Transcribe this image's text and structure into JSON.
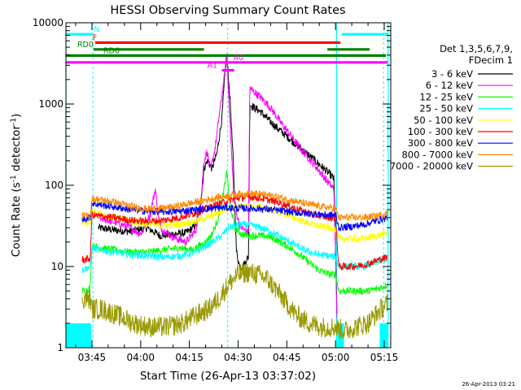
{
  "chart_data": {
    "type": "line",
    "title": "HESSI Observing Summary Count Rates",
    "xlabel": "Start Time (26-Apr-13 03:37:02)",
    "ylabel_main": "Count Rate (s",
    "ylabel_sup": "-1",
    "ylabel_mid": " detector",
    "ylabel_end": ")",
    "yscale": "log",
    "xlim": [
      "03:37",
      "05:17"
    ],
    "ylim": [
      1,
      10000
    ],
    "xticks": [
      {
        "t": "03:45",
        "m": 225
      },
      {
        "t": "04:00",
        "m": 240
      },
      {
        "t": "04:15",
        "m": 255
      },
      {
        "t": "04:30",
        "m": 270
      },
      {
        "t": "04:45",
        "m": 285
      },
      {
        "t": "05:00",
        "m": 300
      },
      {
        "t": "05:15",
        "m": 315
      }
    ],
    "yticks": [
      {
        "t": "1",
        "v": 1
      },
      {
        "t": "10",
        "v": 10
      },
      {
        "t": "100",
        "v": 100
      },
      {
        "t": "1000",
        "v": 1000
      },
      {
        "t": "10000",
        "v": 10000
      }
    ],
    "legend": {
      "title1": "Det 1,3,5,6,7,9,",
      "title2": "FDecim 1",
      "position": "right"
    },
    "series": [
      {
        "name": "3 - 6 keV",
        "color": "#000000",
        "points": [
          [
            227,
            30
          ],
          [
            232,
            28
          ],
          [
            237,
            27
          ],
          [
            242,
            30
          ],
          [
            246,
            24
          ],
          [
            250,
            25
          ],
          [
            254,
            26
          ],
          [
            257,
            32
          ],
          [
            258.5,
            60
          ],
          [
            259.5,
            160
          ],
          [
            260.5,
            200
          ],
          [
            262,
            160
          ],
          [
            263.5,
            250
          ],
          [
            265,
            650
          ],
          [
            266,
            2500
          ],
          [
            266.5,
            4000
          ],
          [
            267.5,
            1200
          ],
          [
            268.5,
            200
          ],
          [
            269.5,
            15
          ],
          [
            270.5,
            10
          ],
          [
            271.5,
            10
          ],
          [
            272.5,
            12
          ],
          [
            273.2,
            13
          ],
          [
            273.6,
            1000
          ],
          [
            275,
            900
          ],
          [
            277,
            800
          ],
          [
            280,
            600
          ],
          [
            283,
            470
          ],
          [
            286,
            370
          ],
          [
            289,
            290
          ],
          [
            292,
            230
          ],
          [
            295,
            180
          ],
          [
            298,
            140
          ],
          [
            299.5,
            120
          ],
          [
            300.5,
            2
          ]
        ]
      },
      {
        "name": "6 - 12 keV",
        "color": "#ff00ff",
        "points": [
          [
            227,
            40
          ],
          [
            232,
            35
          ],
          [
            237,
            30
          ],
          [
            240,
            25
          ],
          [
            243,
            45
          ],
          [
            244.5,
            90
          ],
          [
            246,
            30
          ],
          [
            250,
            23
          ],
          [
            254,
            20
          ],
          [
            257,
            28
          ],
          [
            258.5,
            60
          ],
          [
            259.5,
            200
          ],
          [
            260.5,
            260
          ],
          [
            261.5,
            150
          ],
          [
            263,
            300
          ],
          [
            264.5,
            900
          ],
          [
            266,
            2500
          ],
          [
            266.5,
            4200
          ],
          [
            267.5,
            600
          ],
          [
            268.5,
            100
          ],
          [
            269.5,
            45
          ],
          [
            270.5,
            32
          ],
          [
            272,
            28
          ],
          [
            273.2,
            26
          ],
          [
            273.6,
            1600
          ],
          [
            275,
            1400
          ],
          [
            277,
            1200
          ],
          [
            280,
            900
          ],
          [
            283,
            600
          ],
          [
            286,
            420
          ],
          [
            289,
            290
          ],
          [
            292,
            210
          ],
          [
            295,
            150
          ],
          [
            298,
            105
          ],
          [
            299.5,
            90
          ],
          [
            300.5,
            2
          ]
        ]
      },
      {
        "name": "12 - 25 keV",
        "color": "#00ff00",
        "points": [
          [
            222,
            5
          ],
          [
            223,
            5
          ],
          [
            224.5,
            5.5
          ],
          [
            225,
            18
          ],
          [
            227,
            17
          ],
          [
            232,
            16
          ],
          [
            237,
            15
          ],
          [
            242,
            15
          ],
          [
            247,
            16
          ],
          [
            252,
            17
          ],
          [
            256,
            16
          ],
          [
            258,
            18
          ],
          [
            260,
            20
          ],
          [
            262,
            25
          ],
          [
            264,
            40
          ],
          [
            265.5,
            80
          ],
          [
            266.5,
            150
          ],
          [
            267.5,
            60
          ],
          [
            269,
            30
          ],
          [
            271,
            25
          ],
          [
            274,
            24
          ],
          [
            277,
            24
          ],
          [
            280,
            23
          ],
          [
            283,
            20
          ],
          [
            286,
            17
          ],
          [
            289,
            14
          ],
          [
            292,
            11
          ],
          [
            295,
            9
          ],
          [
            298,
            8
          ],
          [
            300,
            8
          ],
          [
            301,
            5
          ],
          [
            304,
            5
          ],
          [
            306,
            5
          ],
          [
            310,
            5
          ],
          [
            314,
            5.5
          ],
          [
            316,
            6
          ]
        ]
      },
      {
        "name": "25 - 50 keV",
        "color": "#00ffff",
        "points": [
          [
            222,
            9
          ],
          [
            224.5,
            10
          ],
          [
            225,
            17
          ],
          [
            227,
            16
          ],
          [
            232,
            15
          ],
          [
            237,
            14
          ],
          [
            242,
            13.5
          ],
          [
            247,
            13
          ],
          [
            252,
            13.5
          ],
          [
            257,
            15
          ],
          [
            262,
            20
          ],
          [
            265,
            24
          ],
          [
            267,
            30
          ],
          [
            269,
            32
          ],
          [
            271,
            33
          ],
          [
            274,
            32
          ],
          [
            277,
            30
          ],
          [
            280,
            27
          ],
          [
            283,
            23
          ],
          [
            286,
            20
          ],
          [
            289,
            17
          ],
          [
            292,
            15
          ],
          [
            295,
            14
          ],
          [
            298,
            13.5
          ],
          [
            300,
            13
          ],
          [
            301,
            10
          ],
          [
            304,
            10
          ],
          [
            308,
            10
          ],
          [
            312,
            11
          ],
          [
            316,
            12.5
          ]
        ]
      },
      {
        "name": "50 - 100 keV",
        "color": "#ffff00",
        "points": [
          [
            222,
            34
          ],
          [
            224.5,
            34
          ],
          [
            225,
            48
          ],
          [
            227,
            45
          ],
          [
            232,
            40
          ],
          [
            237,
            36
          ],
          [
            242,
            33
          ],
          [
            247,
            32
          ],
          [
            252,
            33
          ],
          [
            257,
            36
          ],
          [
            262,
            42
          ],
          [
            266,
            50
          ],
          [
            270,
            55
          ],
          [
            274,
            55
          ],
          [
            278,
            53
          ],
          [
            282,
            48
          ],
          [
            286,
            42
          ],
          [
            290,
            36
          ],
          [
            294,
            32
          ],
          [
            298,
            30
          ],
          [
            300,
            29
          ],
          [
            301,
            22
          ],
          [
            305,
            22
          ],
          [
            309,
            22
          ],
          [
            313,
            24
          ],
          [
            316,
            26
          ]
        ]
      },
      {
        "name": "100 - 300 keV",
        "color": "#ff0000",
        "points": [
          [
            222,
            12
          ],
          [
            224.5,
            12.5
          ],
          [
            225,
            43
          ],
          [
            227,
            42
          ],
          [
            232,
            40
          ],
          [
            237,
            37
          ],
          [
            242,
            36
          ],
          [
            247,
            37
          ],
          [
            252,
            40
          ],
          [
            257,
            46
          ],
          [
            262,
            55
          ],
          [
            266,
            63
          ],
          [
            270,
            70
          ],
          [
            274,
            72
          ],
          [
            278,
            68
          ],
          [
            282,
            62
          ],
          [
            286,
            55
          ],
          [
            290,
            48
          ],
          [
            294,
            43
          ],
          [
            298,
            40
          ],
          [
            300,
            39
          ],
          [
            301,
            10
          ],
          [
            305,
            10
          ],
          [
            309,
            10.5
          ],
          [
            313,
            12
          ],
          [
            316,
            13
          ]
        ]
      },
      {
        "name": "300 - 800 keV",
        "color": "#0000ff",
        "points": [
          [
            222,
            38
          ],
          [
            224.5,
            40
          ],
          [
            225,
            60
          ],
          [
            227,
            58
          ],
          [
            232,
            54
          ],
          [
            237,
            50
          ],
          [
            242,
            48
          ],
          [
            247,
            47
          ],
          [
            252,
            48
          ],
          [
            257,
            50
          ],
          [
            262,
            52
          ],
          [
            266,
            53
          ],
          [
            270,
            52
          ],
          [
            274,
            52
          ],
          [
            278,
            51
          ],
          [
            282,
            49
          ],
          [
            286,
            47
          ],
          [
            290,
            45
          ],
          [
            294,
            44
          ],
          [
            298,
            43
          ],
          [
            300,
            43
          ],
          [
            301,
            30
          ],
          [
            305,
            31
          ],
          [
            309,
            33
          ],
          [
            313,
            37
          ],
          [
            316,
            40
          ]
        ]
      },
      {
        "name": "800 - 7000 keV",
        "color": "#ff8800",
        "points": [
          [
            222,
            42
          ],
          [
            224.5,
            42
          ],
          [
            225,
            68
          ],
          [
            227,
            67
          ],
          [
            232,
            62
          ],
          [
            237,
            55
          ],
          [
            242,
            51
          ],
          [
            247,
            52
          ],
          [
            252,
            56
          ],
          [
            257,
            62
          ],
          [
            262,
            68
          ],
          [
            266,
            74
          ],
          [
            270,
            78
          ],
          [
            274,
            79
          ],
          [
            278,
            77
          ],
          [
            282,
            72
          ],
          [
            286,
            66
          ],
          [
            290,
            60
          ],
          [
            294,
            56
          ],
          [
            298,
            53
          ],
          [
            300,
            52
          ],
          [
            301,
            40
          ],
          [
            305,
            40
          ],
          [
            309,
            40
          ],
          [
            313,
            42
          ],
          [
            316,
            45
          ]
        ]
      },
      {
        "name": "7000 - 20000 keV",
        "color": "#999900",
        "points": [
          [
            222,
            4
          ],
          [
            224.5,
            4
          ],
          [
            225,
            3
          ],
          [
            228,
            3
          ],
          [
            233,
            2.5
          ],
          [
            238,
            2
          ],
          [
            243,
            1.8
          ],
          [
            248,
            1.8
          ],
          [
            253,
            2
          ],
          [
            257,
            2.5
          ],
          [
            261,
            3
          ],
          [
            264,
            4
          ],
          [
            267,
            6
          ],
          [
            270,
            8
          ],
          [
            273,
            8.5
          ],
          [
            276,
            8
          ],
          [
            279,
            7
          ],
          [
            282,
            5
          ],
          [
            285,
            3.5
          ],
          [
            288,
            2.5
          ],
          [
            292,
            2
          ],
          [
            296,
            1.8
          ],
          [
            300,
            1.8
          ],
          [
            303,
            1.6
          ],
          [
            306,
            1.8
          ],
          [
            310,
            2
          ],
          [
            314,
            3
          ],
          [
            316,
            3.5
          ]
        ]
      }
    ],
    "flag_bars": [
      {
        "label": "N",
        "color": "#00ffff",
        "level": 7200,
        "label_at": 225.6,
        "segments": [
          [
            217,
            225.3
          ],
          [
            302,
            316
          ]
        ]
      },
      {
        "label": "F",
        "color": "#ff0000",
        "level": 5700,
        "label_at": 225.2,
        "segments": [
          [
            226,
            301.5
          ]
        ]
      },
      {
        "label": "RD0",
        "color": "#008000",
        "level": 4700,
        "label_at": 220.5,
        "segments": [
          [
            225.5,
            259.5
          ],
          [
            297.5,
            310.5
          ]
        ]
      },
      {
        "label": "RD6",
        "color": "#008000",
        "level": 3950,
        "label_at": 228.5,
        "segments": [
          [
            217,
            315.5
          ]
        ]
      },
      {
        "label": "A0",
        "color": "#ff00ff",
        "level": 3250,
        "label_at": 268.5,
        "segments": [
          [
            217,
            316
          ]
        ]
      },
      {
        "label": "A1",
        "color": "#ff00ff",
        "level": 2600,
        "label_at": 260.5,
        "segments": [
          [
            265,
            268.8
          ]
        ]
      }
    ],
    "vlines_solid": [
      217,
      300.3,
      316.2
    ],
    "vlines_dashed": [
      225.3,
      266.8,
      300.3,
      314.8
    ],
    "corner_date": "26-Apr-2013 03:21"
  }
}
